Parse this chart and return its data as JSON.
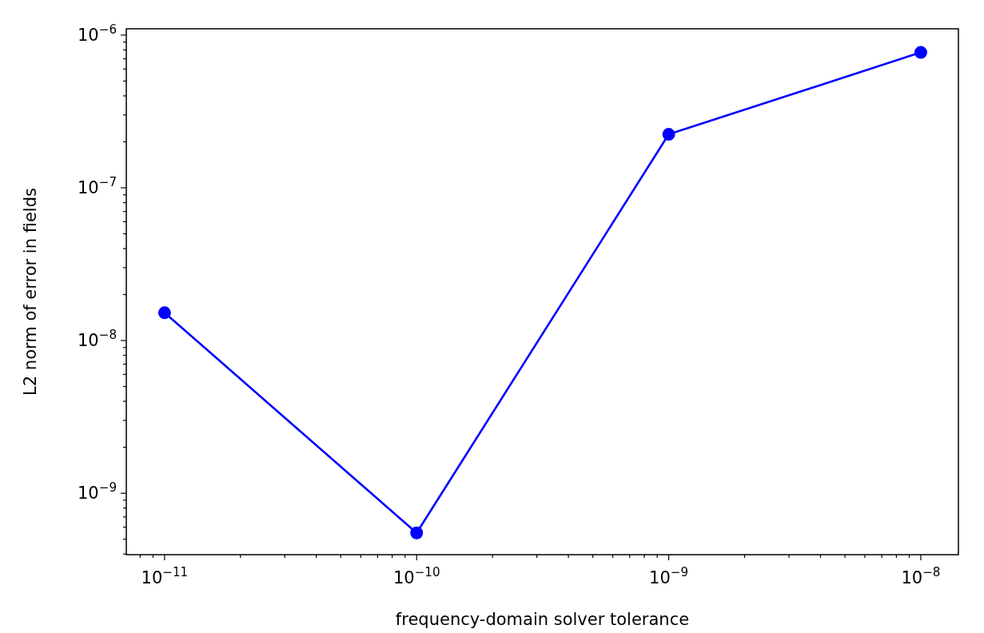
{
  "chart_data": {
    "type": "line",
    "xlabel": "frequency-domain solver tolerance",
    "ylabel": "L2 norm of error in fields",
    "log": "xy",
    "grid": false,
    "marker": "circle",
    "line_style": "solid",
    "x": [
      1e-11,
      1e-10,
      1e-09,
      1e-08
    ],
    "series": [
      {
        "color": "#0000ff",
        "values": [
          1.52e-08,
          5.5e-10,
          2.24e-07,
          7.7e-07
        ]
      }
    ],
    "xlim": [
      7.05e-12,
      1.41e-08
    ],
    "ylim": [
      3.96e-10,
      1.1e-06
    ],
    "xticks": [
      {
        "value": 8e-12,
        "label": null
      },
      {
        "value": 9e-12,
        "label": null
      },
      {
        "value": 1e-11,
        "label": "10$^{−11}$"
      },
      {
        "value": 2e-11,
        "label": null
      },
      {
        "value": 3e-11,
        "label": null
      },
      {
        "value": 4e-11,
        "label": null
      },
      {
        "value": 5e-11,
        "label": null
      },
      {
        "value": 6e-11,
        "label": null
      },
      {
        "value": 7e-11,
        "label": null
      },
      {
        "value": 8e-11,
        "label": null
      },
      {
        "value": 9e-11,
        "label": null
      },
      {
        "value": 1e-10,
        "label": "10$^{−10}$"
      },
      {
        "value": 2e-10,
        "label": null
      },
      {
        "value": 3e-10,
        "label": null
      },
      {
        "value": 4e-10,
        "label": null
      },
      {
        "value": 5e-10,
        "label": null
      },
      {
        "value": 6e-10,
        "label": null
      },
      {
        "value": 7e-10,
        "label": null
      },
      {
        "value": 8e-10,
        "label": null
      },
      {
        "value": 9e-10,
        "label": null
      },
      {
        "value": 1e-09,
        "label": "10$^{−9}$"
      },
      {
        "value": 2e-09,
        "label": null
      },
      {
        "value": 3e-09,
        "label": null
      },
      {
        "value": 4e-09,
        "label": null
      },
      {
        "value": 5e-09,
        "label": null
      },
      {
        "value": 6e-09,
        "label": null
      },
      {
        "value": 7e-09,
        "label": null
      },
      {
        "value": 8e-09,
        "label": null
      },
      {
        "value": 9e-09,
        "label": null
      },
      {
        "value": 1e-08,
        "label": "10$^{−8}$"
      }
    ],
    "yticks": [
      {
        "value": 4e-10,
        "label": null
      },
      {
        "value": 5e-10,
        "label": null
      },
      {
        "value": 6e-10,
        "label": null
      },
      {
        "value": 7e-10,
        "label": null
      },
      {
        "value": 8e-10,
        "label": null
      },
      {
        "value": 9e-10,
        "label": null
      },
      {
        "value": 1e-09,
        "label": "10$^{−9}$"
      },
      {
        "value": 2e-09,
        "label": null
      },
      {
        "value": 3e-09,
        "label": null
      },
      {
        "value": 4e-09,
        "label": null
      },
      {
        "value": 5e-09,
        "label": null
      },
      {
        "value": 6e-09,
        "label": null
      },
      {
        "value": 7e-09,
        "label": null
      },
      {
        "value": 8e-09,
        "label": null
      },
      {
        "value": 9e-09,
        "label": null
      },
      {
        "value": 1e-08,
        "label": "10$^{−8}$"
      },
      {
        "value": 2e-08,
        "label": null
      },
      {
        "value": 3e-08,
        "label": null
      },
      {
        "value": 4e-08,
        "label": null
      },
      {
        "value": 5e-08,
        "label": null
      },
      {
        "value": 6e-08,
        "label": null
      },
      {
        "value": 7e-08,
        "label": null
      },
      {
        "value": 8e-08,
        "label": null
      },
      {
        "value": 9e-08,
        "label": null
      },
      {
        "value": 1e-07,
        "label": "10$^{−7}$"
      },
      {
        "value": 2e-07,
        "label": null
      },
      {
        "value": 3e-07,
        "label": null
      },
      {
        "value": 4e-07,
        "label": null
      },
      {
        "value": 5e-07,
        "label": null
      },
      {
        "value": 6e-07,
        "label": null
      },
      {
        "value": 7e-07,
        "label": null
      },
      {
        "value": 8e-07,
        "label": null
      },
      {
        "value": 9e-07,
        "label": null
      },
      {
        "value": 1e-06,
        "label": "10$^{−6}$"
      }
    ]
  }
}
